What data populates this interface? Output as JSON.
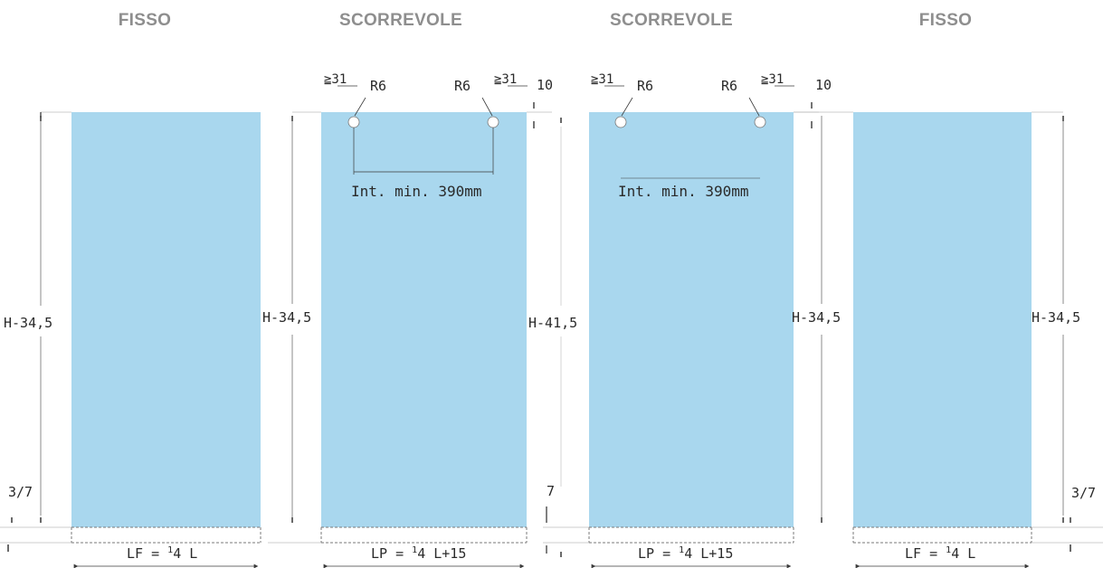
{
  "panels": [
    {
      "title": "FISSO",
      "type": "fixed",
      "height_label": "H-34,5",
      "bottom_label": "3/7",
      "width_label_pre": "LF = ",
      "width_label_sup": "1",
      "width_label_post": "4 L"
    },
    {
      "title": "SCORREVOLE",
      "type": "sliding",
      "height_label": "H-34,5",
      "offset_left": "≧31",
      "offset_right": "≧31",
      "hole_left": "R6",
      "hole_right": "R6",
      "top_gap": "10",
      "interaxis": "Int. min. 390mm",
      "width_label_pre": "LP = ",
      "width_label_sup": "1",
      "width_label_post": "4 L+15"
    },
    {
      "title": "SCORREVOLE",
      "type": "sliding",
      "height_label": "H-41,5",
      "bottom_label": "7",
      "offset_left": "≧31",
      "offset_right": "≧31",
      "hole_left": "R6",
      "hole_right": "R6",
      "top_gap": "10",
      "interaxis": "Int. min. 390mm",
      "width_label_pre": "LP = ",
      "width_label_sup": "1",
      "width_label_post": "4 L+15"
    },
    {
      "title": "FISSO",
      "type": "fixed",
      "height_label": "H-34,5",
      "height_label_outer": "H-34,5",
      "bottom_label": "3/7",
      "width_label_pre": "LF = ",
      "width_label_sup": "1",
      "width_label_post": "4 L"
    }
  ],
  "colors": {
    "glass": "#a9d7ee",
    "line": "#3a3a3a",
    "header": "#8e8e8e"
  }
}
